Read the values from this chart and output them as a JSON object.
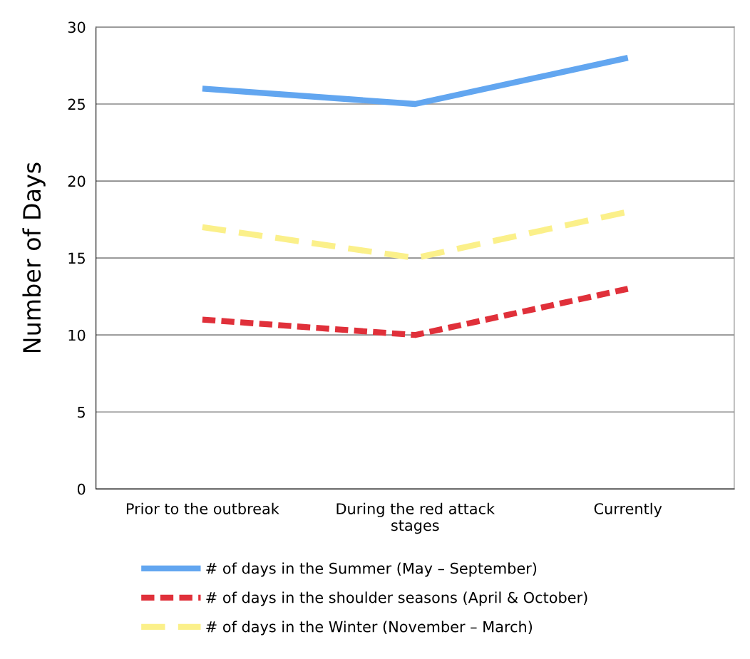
{
  "chart_data": {
    "type": "line",
    "ylabel": "Number of Days",
    "categories": [
      "Prior to the outbreak",
      "During the red attack\nstages",
      "Currently"
    ],
    "series": [
      {
        "name": "# of days in the Summer (May – September)",
        "color": "#62a6f0",
        "values": [
          26,
          25,
          28
        ],
        "line_style": "solid"
      },
      {
        "name": "# of days in the shoulder seasons (April & October)",
        "color": "#e0303a",
        "values": [
          11,
          10,
          13
        ],
        "line_style": "dashed"
      },
      {
        "name": "# of days in the Winter (November – March)",
        "color": "#fbf08a",
        "values": [
          17,
          15,
          18
        ],
        "line_style": "dashed"
      }
    ],
    "ylim": [
      0,
      30
    ],
    "yticks": [
      0,
      5,
      10,
      15,
      20,
      25,
      30
    ],
    "grid": "y",
    "legend": "bottom",
    "marker": "none"
  }
}
